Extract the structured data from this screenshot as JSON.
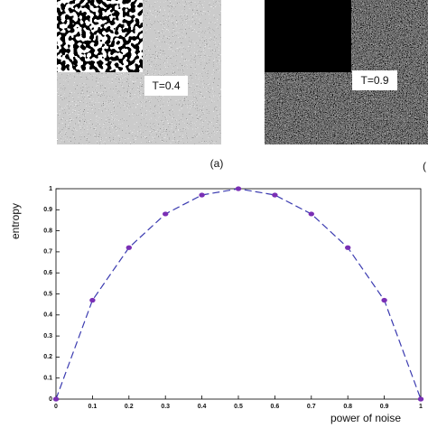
{
  "panels": [
    {
      "label": "T=0.4"
    },
    {
      "label": "T=0.9"
    }
  ],
  "captions": [
    "(a)",
    "("
  ],
  "chart_data": {
    "type": "line",
    "xlabel": "power of noise",
    "ylabel": "entropy",
    "x": [
      0,
      0.1,
      0.2,
      0.3,
      0.4,
      0.5,
      0.6,
      0.7,
      0.8,
      0.9,
      1
    ],
    "values": [
      0,
      0.47,
      0.72,
      0.88,
      0.97,
      1,
      0.97,
      0.88,
      0.72,
      0.47,
      0
    ],
    "color": "#3b3bb0",
    "marker_color": "#7a2fb5",
    "xlim": [
      0,
      1
    ],
    "ylim": [
      0,
      1
    ],
    "xticks": [
      0,
      0.1,
      0.2,
      0.3,
      0.4,
      0.5,
      0.6,
      0.7,
      0.8,
      0.9,
      1
    ],
    "yticks": [
      0,
      0.1,
      0.2,
      0.3,
      0.4,
      0.5,
      0.6,
      0.7,
      0.8,
      0.9,
      1
    ],
    "grid": false
  }
}
